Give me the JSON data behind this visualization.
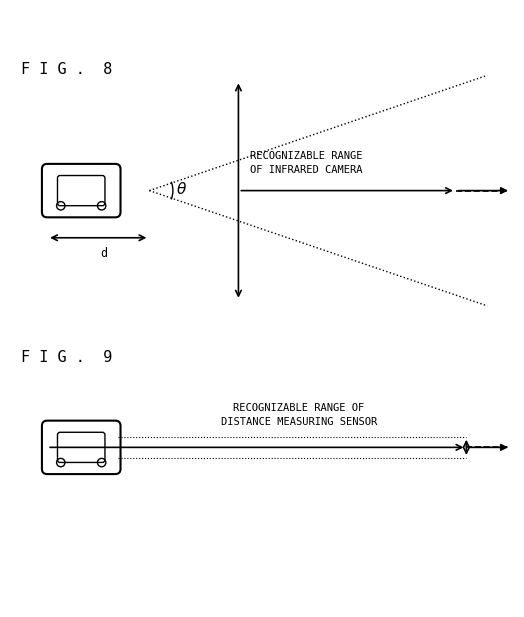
{
  "fig8_title": "F I G .  8",
  "fig9_title": "F I G .  9",
  "bg_color": "#ffffff",
  "line_color": "#000000",
  "fig8": {
    "label_range": "RECOGNIZABLE RANGE\nOF INFRARED CAMERA",
    "label_theta": "θ",
    "label_d": "d"
  },
  "fig9": {
    "label_range": "RECOGNIZABLE RANGE OF\nDISTANCE MEASURING SENSOR"
  },
  "font_size_title": 11,
  "font_size_label": 7.5,
  "font_size_theta": 11
}
